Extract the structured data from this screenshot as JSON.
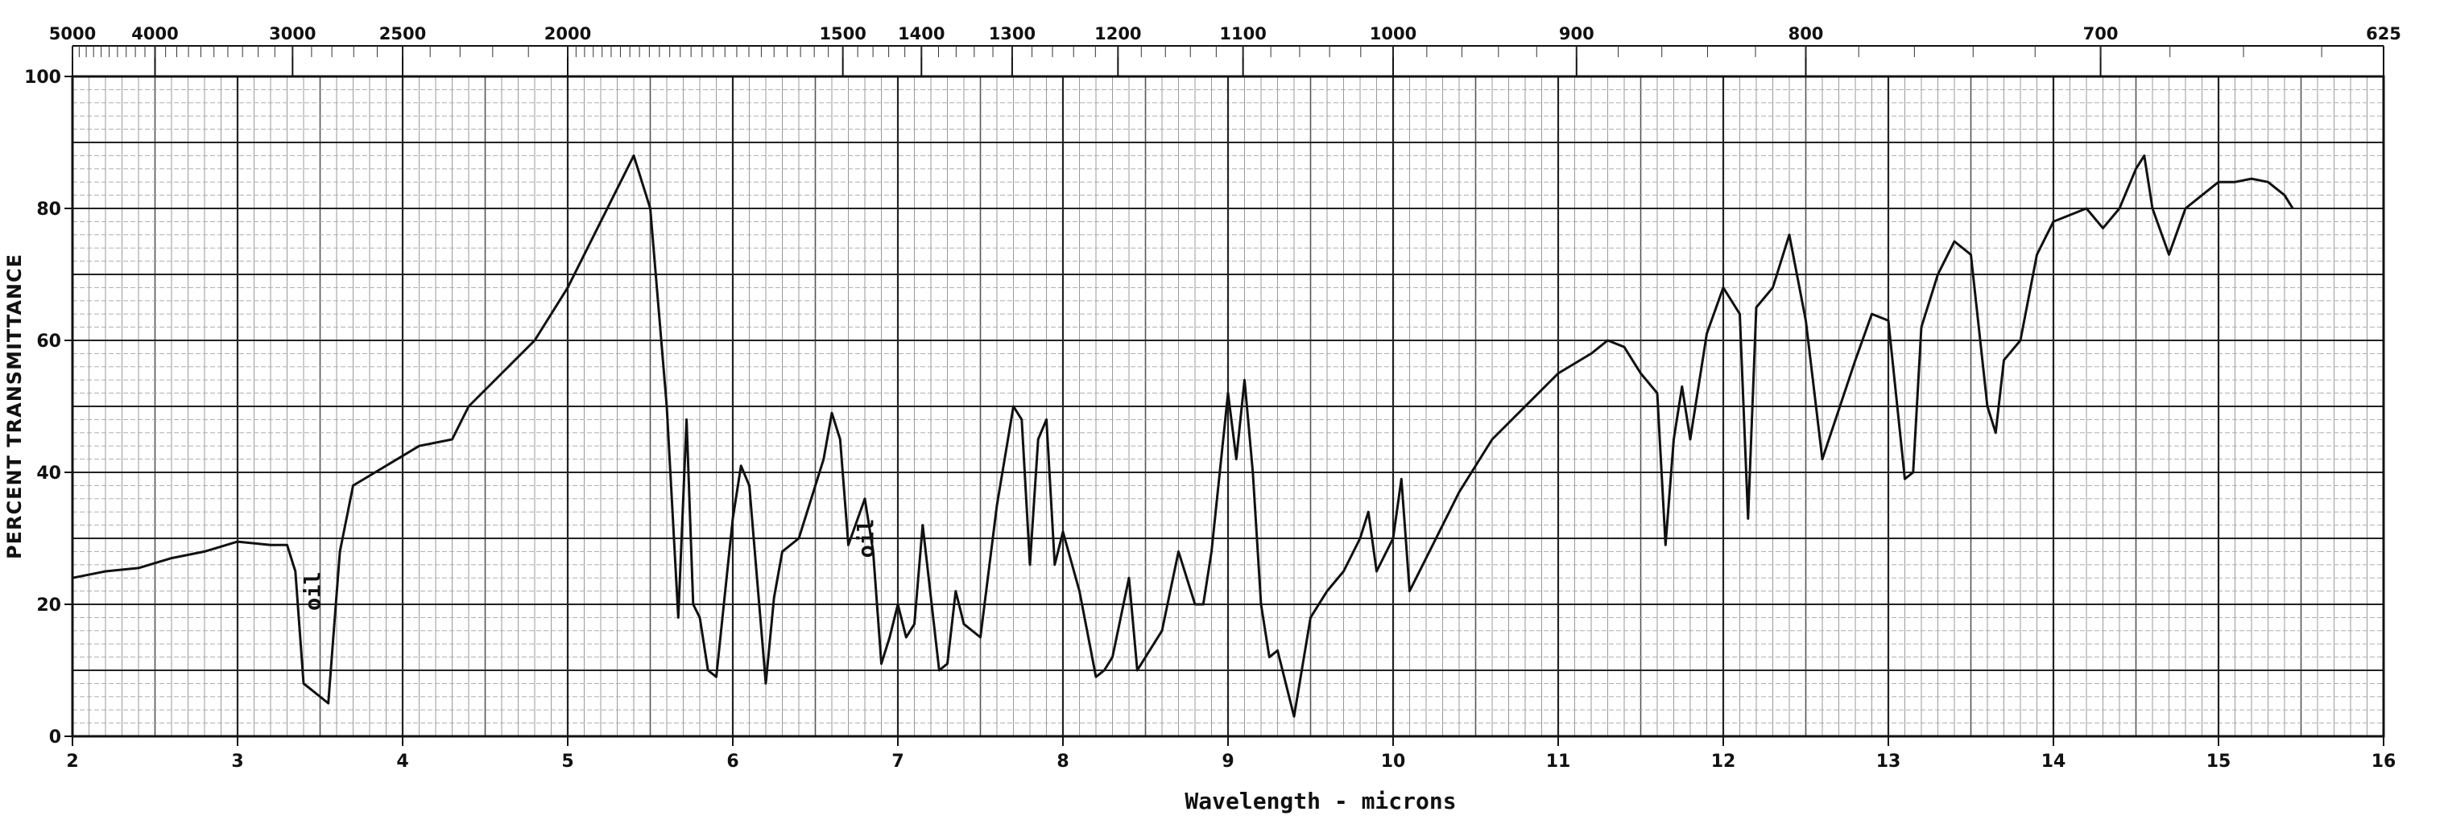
{
  "chart_data": {
    "type": "line",
    "title": "",
    "xlabel": "Wavelength - microns",
    "ylabel": "PERCENT TRANSMITTANCE",
    "xlim": [
      2,
      16
    ],
    "ylim": [
      0,
      100
    ],
    "grid": true,
    "x_ticks": [
      "2",
      "3",
      "4",
      "5",
      "6",
      "7",
      "8",
      "9",
      "10",
      "11",
      "12",
      "13",
      "14",
      "15",
      "16"
    ],
    "y_ticks": [
      "0",
      "20",
      "40",
      "60",
      "80",
      "100"
    ],
    "top_axis_label": "",
    "top_ticks": [
      {
        "label": "5000",
        "wavenumber": 5000
      },
      {
        "label": "4000",
        "wavenumber": 4000
      },
      {
        "label": "3000",
        "wavenumber": 3000
      },
      {
        "label": "2500",
        "wavenumber": 2500
      },
      {
        "label": "2000",
        "wavenumber": 2000
      },
      {
        "label": "1500",
        "wavenumber": 1500
      },
      {
        "label": "1400",
        "wavenumber": 1400
      },
      {
        "label": "1300",
        "wavenumber": 1300
      },
      {
        "label": "1200",
        "wavenumber": 1200
      },
      {
        "label": "1100",
        "wavenumber": 1100
      },
      {
        "label": "1000",
        "wavenumber": 1000
      },
      {
        "label": "900",
        "wavenumber": 900
      },
      {
        "label": "800",
        "wavenumber": 800
      },
      {
        "label": "700",
        "wavenumber": 700
      },
      {
        "label": "625",
        "wavenumber": 625
      }
    ],
    "annotations": [
      {
        "text": "oil",
        "x": 3.5,
        "y": 22
      },
      {
        "text": "oil",
        "x": 6.85,
        "y": 30
      }
    ],
    "series": [
      {
        "color": "#111111",
        "x": [
          2.0,
          2.2,
          2.4,
          2.6,
          2.8,
          3.0,
          3.2,
          3.3,
          3.35,
          3.4,
          3.55,
          3.58,
          3.62,
          3.7,
          3.8,
          3.9,
          4.1,
          4.3,
          4.4,
          4.6,
          4.8,
          5.0,
          5.2,
          5.3,
          5.4,
          5.5,
          5.6,
          5.67,
          5.72,
          5.76,
          5.8,
          5.85,
          5.9,
          6.0,
          6.05,
          6.1,
          6.2,
          6.25,
          6.3,
          6.4,
          6.45,
          6.55,
          6.6,
          6.65,
          6.7,
          6.8,
          6.85,
          6.9,
          6.95,
          7.0,
          7.05,
          7.1,
          7.15,
          7.25,
          7.3,
          7.35,
          7.4,
          7.5,
          7.6,
          7.7,
          7.75,
          7.8,
          7.85,
          7.9,
          7.95,
          8.0,
          8.1,
          8.2,
          8.25,
          8.3,
          8.4,
          8.45,
          8.5,
          8.6,
          8.7,
          8.8,
          8.85,
          8.9,
          9.0,
          9.05,
          9.1,
          9.15,
          9.2,
          9.25,
          9.3,
          9.4,
          9.5,
          9.6,
          9.7,
          9.8,
          9.85,
          9.9,
          10.0,
          10.05,
          10.1,
          10.2,
          10.4,
          10.6,
          10.8,
          11.0,
          11.2,
          11.3,
          11.4,
          11.5,
          11.6,
          11.65,
          11.7,
          11.75,
          11.8,
          11.9,
          12.0,
          12.1,
          12.15,
          12.2,
          12.3,
          12.4,
          12.5,
          12.6,
          12.8,
          12.9,
          13.0,
          13.1,
          13.15,
          13.2,
          13.3,
          13.4,
          13.5,
          13.6,
          13.65,
          13.7,
          13.8,
          13.9,
          14.0,
          14.2,
          14.3,
          14.4,
          14.5,
          14.55,
          14.6,
          14.7,
          14.8,
          14.9,
          15.0,
          15.1,
          15.2,
          15.3,
          15.4,
          15.45
        ],
        "y": [
          24,
          25,
          25.5,
          27,
          28,
          29.5,
          29,
          29,
          25,
          8,
          5,
          15,
          28,
          38,
          39.5,
          41,
          44,
          45,
          50,
          55,
          60,
          68,
          78,
          83,
          88,
          80,
          50,
          18,
          48,
          20,
          18,
          10,
          9,
          33,
          41,
          38,
          8,
          21,
          28,
          30,
          34,
          42,
          49,
          45,
          29,
          36,
          28,
          11,
          15,
          20,
          15,
          17,
          32,
          10,
          11,
          22,
          17,
          15,
          35,
          50,
          48,
          26,
          45,
          48,
          26,
          31,
          22,
          9,
          10,
          12,
          24,
          10,
          12,
          16,
          28,
          20,
          20,
          28,
          52,
          42,
          54,
          40,
          20,
          12,
          13,
          3,
          18,
          22,
          25,
          30,
          34,
          25,
          30,
          39,
          22,
          27,
          37,
          45,
          50,
          55,
          58,
          60,
          59,
          55,
          52,
          29,
          45,
          53,
          45,
          61,
          68,
          64,
          33,
          65,
          68,
          76,
          63,
          42,
          57,
          64,
          63,
          39,
          40,
          62,
          70,
          75,
          73,
          50,
          46,
          57,
          60,
          73,
          78,
          80,
          77,
          80,
          86,
          88,
          80,
          73,
          80,
          82,
          84,
          84,
          84.5,
          84,
          82,
          80
        ]
      }
    ]
  }
}
